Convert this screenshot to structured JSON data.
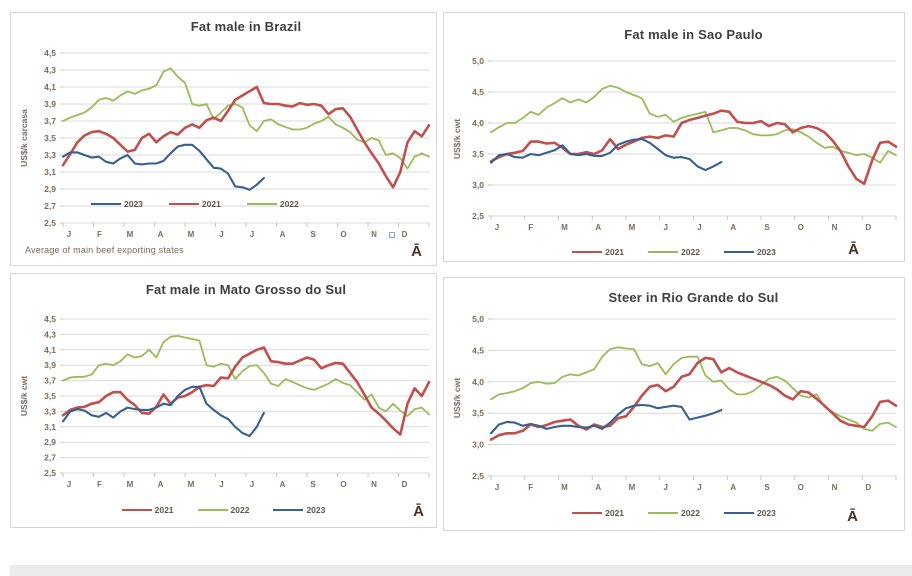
{
  "page": {
    "background": "#ffffff",
    "bottom_strip_color": "#ebebeb"
  },
  "colors": {
    "series_2021": "#C0504D",
    "series_2022": "#9BBB59",
    "series_2023": "#36618E",
    "gridline": "#D9D9D9",
    "axis_tick": "#C9C6C2",
    "axis_text": "#7B6B5D",
    "title_text": "#3F3F3F",
    "panel_border": "#D6D4D4",
    "watermark": "#4A3226"
  },
  "chart_data": [
    {
      "type": "line",
      "title": "Fat male in Brazil",
      "ylabel": "US$/k carcasa",
      "ylim": [
        2.5,
        4.5
      ],
      "ytick_step": 0.2,
      "ytick_labels": [
        "4,5",
        "4,3",
        "4,1",
        "3,9",
        "3,7",
        "3,5",
        "3,3",
        "3,1",
        "2,9",
        "2,7",
        "2,5"
      ],
      "months": [
        "J",
        "F",
        "M",
        "A",
        "M",
        "J",
        "J",
        "A",
        "S",
        "O",
        "N",
        "D"
      ],
      "x_unit": "weeks",
      "legend_position": "inside-bottom-left",
      "legend": [
        "2023",
        "2021",
        "2022"
      ],
      "footnote": "Average  of main beef exporting states",
      "watermark": "Ā",
      "series": [
        {
          "name": "2021",
          "color": "#C0504D",
          "values": [
            3.18,
            3.31,
            3.45,
            3.53,
            3.57,
            3.58,
            3.55,
            3.5,
            3.42,
            3.34,
            3.36,
            3.5,
            3.55,
            3.45,
            3.52,
            3.57,
            3.54,
            3.62,
            3.66,
            3.62,
            3.71,
            3.74,
            3.7,
            3.82,
            3.95,
            4.0,
            4.05,
            4.1,
            3.91,
            3.9,
            3.9,
            3.88,
            3.87,
            3.91,
            3.89,
            3.9,
            3.88,
            3.78,
            3.84,
            3.85,
            3.75,
            3.6,
            3.45,
            3.32,
            3.2,
            3.05,
            2.92,
            3.1,
            3.45,
            3.58,
            3.52,
            3.65
          ]
        },
        {
          "name": "2022",
          "color": "#9BBB59",
          "values": [
            3.7,
            3.74,
            3.77,
            3.8,
            3.86,
            3.95,
            3.97,
            3.94,
            4.0,
            4.05,
            4.02,
            4.06,
            4.08,
            4.12,
            4.28,
            4.32,
            4.22,
            4.15,
            3.9,
            3.88,
            3.9,
            3.72,
            3.8,
            3.88,
            3.9,
            3.86,
            3.65,
            3.58,
            3.7,
            3.72,
            3.66,
            3.63,
            3.6,
            3.6,
            3.62,
            3.67,
            3.7,
            3.75,
            3.66,
            3.62,
            3.57,
            3.48,
            3.45,
            3.5,
            3.47,
            3.3,
            3.32,
            3.26,
            3.14,
            3.28,
            3.32,
            3.28
          ]
        },
        {
          "name": "2023",
          "color": "#36618E",
          "values": [
            3.28,
            3.33,
            3.33,
            3.3,
            3.27,
            3.28,
            3.22,
            3.2,
            3.26,
            3.3,
            3.2,
            3.19,
            3.2,
            3.2,
            3.23,
            3.32,
            3.4,
            3.42,
            3.42,
            3.35,
            3.25,
            3.15,
            3.14,
            3.08,
            2.93,
            2.92,
            2.89,
            2.95,
            3.03
          ]
        }
      ]
    },
    {
      "type": "line",
      "title": "Fat male in Sao Paulo",
      "ylabel": "US$/k cwt",
      "ylim": [
        2.5,
        5.0
      ],
      "ytick_step": 0.5,
      "ytick_labels": [
        "5,0",
        "4,5",
        "4,0",
        "3,5",
        "3,0",
        "2,5"
      ],
      "months": [
        "J",
        "F",
        "M",
        "A",
        "M",
        "J",
        "J",
        "A",
        "S",
        "O",
        "N",
        "D"
      ],
      "x_unit": "weeks",
      "legend_position": "below",
      "legend": [
        "2021",
        "2022",
        "2023"
      ],
      "watermark": "Ā",
      "series": [
        {
          "name": "2021",
          "color": "#C0504D",
          "values": [
            3.38,
            3.45,
            3.5,
            3.52,
            3.55,
            3.7,
            3.7,
            3.67,
            3.68,
            3.6,
            3.5,
            3.5,
            3.53,
            3.5,
            3.56,
            3.74,
            3.58,
            3.65,
            3.7,
            3.76,
            3.78,
            3.76,
            3.8,
            3.78,
            4.0,
            4.05,
            4.08,
            4.12,
            4.15,
            4.2,
            4.18,
            4.02,
            4.0,
            4.0,
            4.03,
            3.95,
            4.0,
            3.98,
            3.85,
            3.92,
            3.95,
            3.92,
            3.85,
            3.72,
            3.55,
            3.3,
            3.1,
            3.02,
            3.4,
            3.68,
            3.7,
            3.62
          ]
        },
        {
          "name": "2022",
          "color": "#9BBB59",
          "values": [
            3.85,
            3.93,
            4.0,
            4.0,
            4.08,
            4.18,
            4.13,
            4.25,
            4.32,
            4.4,
            4.33,
            4.38,
            4.33,
            4.42,
            4.55,
            4.6,
            4.57,
            4.5,
            4.45,
            4.4,
            4.15,
            4.1,
            4.13,
            4.02,
            4.08,
            4.12,
            4.15,
            4.18,
            3.85,
            3.88,
            3.92,
            3.92,
            3.88,
            3.82,
            3.8,
            3.8,
            3.82,
            3.88,
            3.9,
            3.85,
            3.78,
            3.68,
            3.6,
            3.62,
            3.55,
            3.52,
            3.48,
            3.5,
            3.44,
            3.36,
            3.55,
            3.48
          ]
        },
        {
          "name": "2023",
          "color": "#36618E",
          "values": [
            3.36,
            3.48,
            3.5,
            3.45,
            3.44,
            3.5,
            3.48,
            3.52,
            3.56,
            3.64,
            3.5,
            3.48,
            3.5,
            3.47,
            3.47,
            3.52,
            3.65,
            3.7,
            3.73,
            3.74,
            3.68,
            3.58,
            3.48,
            3.44,
            3.45,
            3.42,
            3.3,
            3.24,
            3.3,
            3.37
          ]
        }
      ]
    },
    {
      "type": "line",
      "title": "Fat male in Mato Grosso do Sul",
      "ylabel": "US$/k cwt",
      "ylim": [
        2.5,
        4.5
      ],
      "ytick_step": 0.2,
      "ytick_labels": [
        "4,5",
        "4,3",
        "4,1",
        "3,9",
        "3,7",
        "3,5",
        "3,3",
        "3,1",
        "2,9",
        "2,7",
        "2,5"
      ],
      "months": [
        "J",
        "F",
        "M",
        "A",
        "M",
        "J",
        "J",
        "A",
        "S",
        "O",
        "N",
        "D"
      ],
      "x_unit": "weeks",
      "legend_position": "below",
      "legend": [
        "2021",
        "2022",
        "2023"
      ],
      "watermark": "Ā",
      "series": [
        {
          "name": "2021",
          "color": "#C0504D",
          "values": [
            3.25,
            3.32,
            3.35,
            3.36,
            3.4,
            3.42,
            3.5,
            3.55,
            3.55,
            3.45,
            3.38,
            3.28,
            3.27,
            3.36,
            3.52,
            3.4,
            3.48,
            3.5,
            3.55,
            3.62,
            3.64,
            3.63,
            3.74,
            3.73,
            3.88,
            4.0,
            4.05,
            4.1,
            4.13,
            3.95,
            3.94,
            3.92,
            3.92,
            3.96,
            4.0,
            3.97,
            3.86,
            3.9,
            3.93,
            3.92,
            3.8,
            3.68,
            3.52,
            3.35,
            3.27,
            3.18,
            3.08,
            3.0,
            3.4,
            3.6,
            3.5,
            3.68
          ]
        },
        {
          "name": "2022",
          "color": "#9BBB59",
          "values": [
            3.7,
            3.74,
            3.75,
            3.75,
            3.78,
            3.9,
            3.92,
            3.9,
            3.95,
            4.04,
            4.0,
            4.02,
            4.1,
            4.0,
            4.2,
            4.27,
            4.28,
            4.26,
            4.24,
            4.22,
            3.9,
            3.88,
            3.92,
            3.9,
            3.72,
            3.82,
            3.89,
            3.9,
            3.8,
            3.66,
            3.63,
            3.72,
            3.68,
            3.64,
            3.6,
            3.58,
            3.62,
            3.66,
            3.72,
            3.67,
            3.64,
            3.55,
            3.45,
            3.52,
            3.35,
            3.3,
            3.4,
            3.31,
            3.24,
            3.33,
            3.35,
            3.26
          ]
        },
        {
          "name": "2023",
          "color": "#36618E",
          "values": [
            3.17,
            3.3,
            3.33,
            3.31,
            3.25,
            3.23,
            3.28,
            3.22,
            3.3,
            3.35,
            3.33,
            3.32,
            3.32,
            3.35,
            3.4,
            3.38,
            3.5,
            3.58,
            3.62,
            3.62,
            3.4,
            3.32,
            3.25,
            3.2,
            3.1,
            3.02,
            2.98,
            3.1,
            3.28
          ]
        }
      ]
    },
    {
      "type": "line",
      "title": "Steer  in Rio Grande do Sul",
      "ylabel": "US$/k cwt",
      "ylim": [
        2.5,
        5.0
      ],
      "ytick_step": 0.5,
      "ytick_labels": [
        "5,0",
        "4,5",
        "4,0",
        "3,5",
        "3,0",
        "2,5"
      ],
      "months": [
        "J",
        "F",
        "M",
        "A",
        "M",
        "J",
        "J",
        "A",
        "S",
        "O",
        "N",
        "D"
      ],
      "x_unit": "weeks",
      "legend_position": "below",
      "legend": [
        "2021",
        "2022",
        "2023"
      ],
      "watermark": "Ā",
      "series": [
        {
          "name": "2021",
          "color": "#C0504D",
          "values": [
            3.08,
            3.15,
            3.18,
            3.18,
            3.22,
            3.32,
            3.28,
            3.31,
            3.36,
            3.38,
            3.4,
            3.3,
            3.24,
            3.32,
            3.28,
            3.3,
            3.42,
            3.45,
            3.6,
            3.78,
            3.92,
            3.95,
            3.85,
            3.92,
            4.08,
            4.12,
            4.3,
            4.38,
            4.36,
            4.15,
            4.22,
            4.15,
            4.1,
            4.05,
            4.0,
            3.95,
            3.88,
            3.78,
            3.72,
            3.85,
            3.83,
            3.73,
            3.62,
            3.5,
            3.38,
            3.32,
            3.3,
            3.28,
            3.45,
            3.68,
            3.7,
            3.62
          ]
        },
        {
          "name": "2022",
          "color": "#9BBB59",
          "values": [
            3.72,
            3.8,
            3.82,
            3.85,
            3.9,
            3.98,
            4.0,
            3.97,
            3.98,
            4.08,
            4.12,
            4.1,
            4.15,
            4.2,
            4.4,
            4.52,
            4.55,
            4.53,
            4.52,
            4.28,
            4.25,
            4.3,
            4.12,
            4.28,
            4.38,
            4.4,
            4.4,
            4.1,
            4.0,
            4.02,
            3.88,
            3.8,
            3.8,
            3.85,
            3.95,
            4.05,
            4.08,
            4.02,
            3.9,
            3.78,
            3.75,
            3.8,
            3.6,
            3.52,
            3.45,
            3.4,
            3.35,
            3.25,
            3.22,
            3.33,
            3.35,
            3.28
          ]
        },
        {
          "name": "2023",
          "color": "#36618E",
          "values": [
            3.18,
            3.32,
            3.36,
            3.35,
            3.3,
            3.33,
            3.3,
            3.25,
            3.28,
            3.3,
            3.3,
            3.28,
            3.27,
            3.3,
            3.25,
            3.35,
            3.48,
            3.58,
            3.62,
            3.63,
            3.62,
            3.58,
            3.6,
            3.62,
            3.6,
            3.4,
            3.43,
            3.46,
            3.5,
            3.55
          ]
        }
      ]
    }
  ]
}
